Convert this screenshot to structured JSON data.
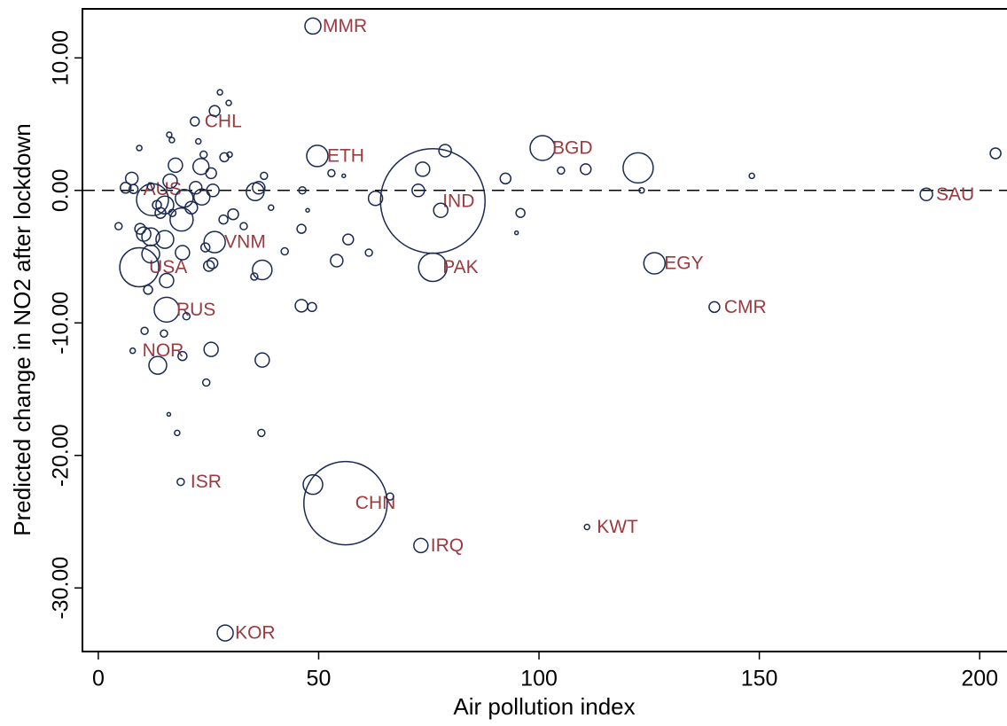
{
  "chart_data": {
    "type": "scatter",
    "x_label": "Air pollution index",
    "y_label": "Predicted change in NO2 after lockdown",
    "xlim": [
      -3.6,
      206.2
    ],
    "ylim": [
      -34.8,
      13.7
    ],
    "xticks": [
      0,
      50,
      100,
      150,
      200
    ],
    "yticks": [
      {
        "value": 10,
        "label": "10.00"
      },
      {
        "value": 0,
        "label": "0.00"
      },
      {
        "value": -10,
        "label": "-10.00"
      },
      {
        "value": -20,
        "label": "-20.00"
      },
      {
        "value": -30,
        "label": "-30.00"
      }
    ],
    "hline": 0,
    "color": "#1a2a52",
    "label_color": "#9b3a3f",
    "x": [
      48.7,
      21.9,
      49.7,
      100.8,
      187.9,
      75.9,
      8,
      26.4,
      9.3,
      75.9,
      126.2,
      139.8,
      15.5,
      7.8,
      18.7,
      56.1,
      73.2,
      110.9,
      28.8,
      27.6,
      29.6,
      26.4,
      16.1,
      16.7,
      9.3,
      22.7,
      17.5,
      23.9,
      28.6,
      29.8,
      23.3,
      25.6,
      16.3,
      11.9,
      22.1,
      26,
      23.5,
      19.5,
      12.3,
      13.3,
      15.1,
      21.1,
      14.1,
      18.9,
      16.8,
      30.6,
      28.4,
      33,
      39.2,
      35.6,
      36.4,
      37.6,
      46.3,
      47.5,
      46.1,
      52.9,
      55.7,
      56.7,
      61.4,
      62.9,
      54.1,
      42.3,
      37.2,
      35.4,
      25.9,
      25.1,
      19.1,
      24.3,
      15.1,
      11.9,
      10.3,
      11.9,
      15.5,
      11.3,
      20,
      10.5,
      14.9,
      19.1,
      25.6,
      13.5,
      37.2,
      24.5,
      16,
      17.9,
      37,
      48.7,
      66.2,
      46.1,
      48.5,
      72.6,
      73.6,
      78.7,
      77.7,
      92.4,
      95.8,
      94.9,
      105,
      110.6,
      122.5,
      123.3,
      148.3,
      203.6,
      4.6,
      6.2,
      7.6,
      9.5
    ],
    "y": [
      12.4,
      5.2,
      2.6,
      3.2,
      -0.3,
      -0.8,
      0.1,
      -3.9,
      -5.8,
      -5.8,
      -5.5,
      -8.8,
      -9.0,
      -12.1,
      -22.0,
      -23.6,
      -26.8,
      -25.4,
      -33.4,
      7.4,
      6.6,
      6.0,
      4.2,
      3.8,
      3.2,
      3.7,
      1.9,
      2.7,
      2.5,
      2.7,
      1.8,
      1.3,
      0.7,
      0.3,
      0.2,
      0,
      -0.5,
      -0.6,
      -0.7,
      -1.1,
      -1.1,
      -1.3,
      -1.7,
      -2.2,
      -1.7,
      -1.8,
      -2.2,
      -2.7,
      -1.3,
      -0.1,
      0.2,
      1.1,
      0,
      -1.5,
      -2.9,
      1.3,
      1.1,
      -3.7,
      -4.7,
      -0.6,
      -5.3,
      -4.6,
      -6.0,
      -6.5,
      -5.5,
      -5.7,
      -4.7,
      -4.3,
      -3.7,
      -3.5,
      -3.3,
      -4.8,
      -6.8,
      -7.5,
      -9.5,
      -10.6,
      -10.8,
      -12.5,
      -12,
      -13.2,
      -12.8,
      -14.5,
      -16.9,
      -18.3,
      -18.3,
      -22.2,
      -23.1,
      -8.7,
      -8.8,
      0,
      1.6,
      3.0,
      -1.5,
      0.9,
      -1.7,
      -3.2,
      1.5,
      1.6,
      1.7,
      0,
      1.1,
      2.8,
      -2.7,
      0.2,
      0.9,
      -2.9
    ],
    "sizes": [
      81,
      25,
      144,
      196,
      49,
      3481,
      25,
      144,
      484,
      256,
      144,
      36,
      196,
      9,
      16,
      2209,
      64,
      9,
      81,
      9,
      9,
      36,
      9,
      9,
      9,
      9,
      64,
      16,
      25,
      9,
      81,
      36,
      64,
      16,
      49,
      49,
      81,
      100,
      324,
      25,
      100,
      49,
      36,
      169,
      16,
      36,
      25,
      16,
      9,
      100,
      49,
      16,
      16,
      4,
      25,
      16,
      4,
      36,
      16,
      64,
      49,
      16,
      121,
      16,
      36,
      36,
      64,
      25,
      100,
      100,
      64,
      100,
      64,
      25,
      16,
      16,
      16,
      25,
      64,
      100,
      64,
      16,
      4,
      9,
      16,
      121,
      16,
      49,
      25,
      49,
      64,
      49,
      64,
      36,
      25,
      4,
      16,
      36,
      289,
      9,
      9,
      36,
      16,
      36,
      49,
      36
    ],
    "labels": [
      "MMR",
      "CHL",
      "ETH",
      "BGD",
      "SAU",
      "IND",
      "AUS",
      "VNM",
      "USA",
      "PAK",
      "EGY",
      "CMR",
      "RUS",
      "NOR",
      "ISR",
      "CHN",
      "IRQ",
      "KWT",
      "KOR",
      null,
      null,
      null,
      null,
      null,
      null,
      null,
      null,
      null,
      null,
      null,
      null,
      null,
      null,
      null,
      null,
      null,
      null,
      null,
      null,
      null,
      null,
      null,
      null,
      null,
      null,
      null,
      null,
      null,
      null,
      null,
      null,
      null,
      null,
      null,
      null,
      null,
      null,
      null,
      null,
      null,
      null,
      null,
      null,
      null,
      null,
      null,
      null,
      null,
      null,
      null,
      null,
      null,
      null,
      null,
      null,
      null,
      null,
      null,
      null,
      null,
      null,
      null,
      null,
      null,
      null,
      null,
      null,
      null,
      null,
      null,
      null,
      null,
      null,
      null,
      null,
      null,
      null,
      null,
      null,
      null,
      null,
      null,
      null,
      null,
      null,
      null
    ]
  }
}
